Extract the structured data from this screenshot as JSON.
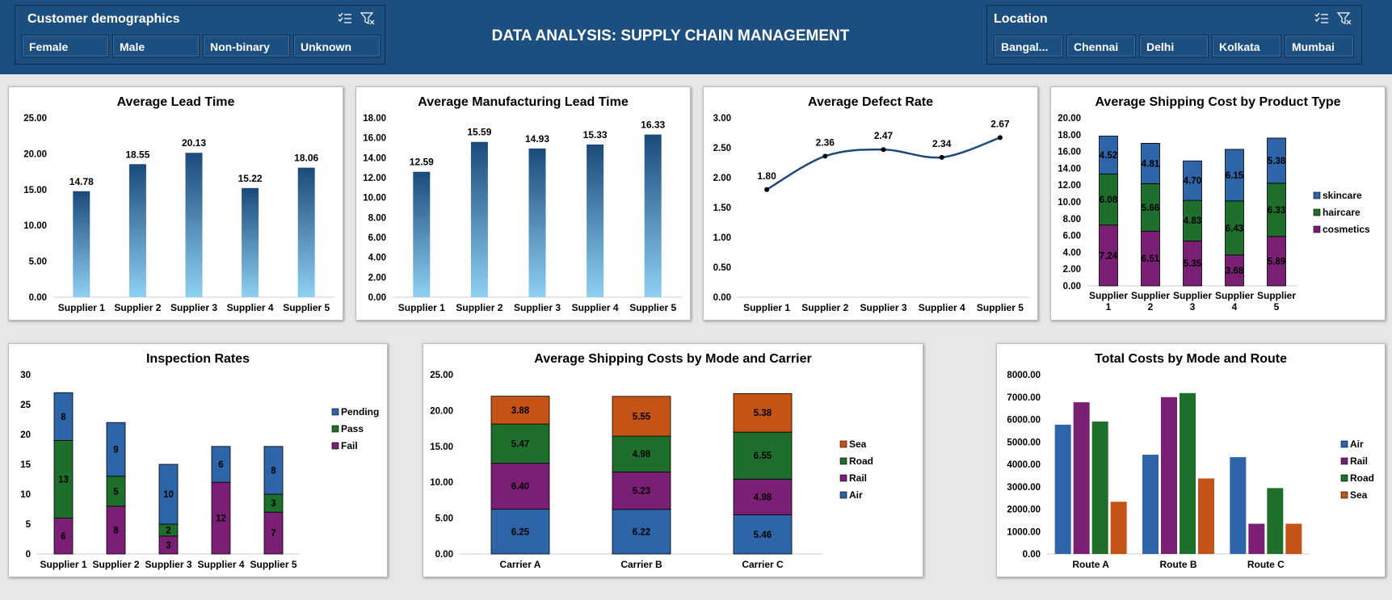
{
  "header": {
    "title": "DATA ANALYSIS: SUPPLY CHAIN MANAGEMENT",
    "demographics_slicer": {
      "title": "Customer demographics",
      "items": [
        "Female",
        "Male",
        "Non-binary",
        "Unknown"
      ]
    },
    "location_slicer": {
      "title": "Location",
      "items": [
        "Bangal...",
        "Chennai",
        "Delhi",
        "Kolkata",
        "Mumbai"
      ]
    }
  },
  "colors": {
    "header_bg": "#1c4e80",
    "blue": "#2e64a8",
    "green": "#1e6e2c",
    "purple": "#7a1f74",
    "orange": "#c55316",
    "navy": "#1b4a7a"
  },
  "chart_data": [
    {
      "id": "lead_time",
      "type": "bar",
      "title": "Average Lead Time",
      "categories": [
        "Supplier 1",
        "Supplier 2",
        "Supplier 3",
        "Supplier 4",
        "Supplier 5"
      ],
      "values": [
        14.78,
        18.55,
        20.13,
        15.22,
        18.06
      ],
      "value_labels": [
        "14.78",
        "18.55",
        "20.13",
        "15.22",
        "18.06"
      ],
      "ylim": [
        0,
        25
      ],
      "yticks": [
        "0.00",
        "5.00",
        "10.00",
        "15.00",
        "20.00",
        "25.00"
      ]
    },
    {
      "id": "mfg_lead_time",
      "type": "bar",
      "title": "Average Manufacturing Lead Time",
      "categories": [
        "Supplier 1",
        "Supplier 2",
        "Supplier 3",
        "Supplier 4",
        "Supplier 5"
      ],
      "values": [
        12.59,
        15.59,
        14.93,
        15.33,
        16.33
      ],
      "value_labels": [
        "12.59",
        "15.59",
        "14.93",
        "15.33",
        "16.33"
      ],
      "ylim": [
        0,
        18
      ],
      "yticks": [
        "0.00",
        "2.00",
        "4.00",
        "6.00",
        "8.00",
        "10.00",
        "12.00",
        "14.00",
        "16.00",
        "18.00"
      ]
    },
    {
      "id": "defect_rate",
      "type": "line",
      "title": "Average Defect Rate",
      "categories": [
        "Supplier 1",
        "Supplier 2",
        "Supplier 3",
        "Supplier 4",
        "Supplier 5"
      ],
      "values": [
        1.8,
        2.36,
        2.47,
        2.34,
        2.67
      ],
      "value_labels": [
        "1.80",
        "2.36",
        "2.47",
        "2.34",
        "2.67"
      ],
      "ylim": [
        0,
        3
      ],
      "yticks": [
        "0.00",
        "0.50",
        "1.00",
        "1.50",
        "2.00",
        "2.50",
        "3.00"
      ]
    },
    {
      "id": "shipping_by_product",
      "type": "bar",
      "stacked": true,
      "title": "Average Shipping Cost by Product Type",
      "categories": [
        "Supplier 1",
        "Supplier 2",
        "Supplier 3",
        "Supplier 4",
        "Supplier 5"
      ],
      "series": [
        {
          "name": "cosmetics",
          "color": "#7a1f74",
          "values": [
            7.24,
            6.51,
            5.35,
            3.68,
            5.89
          ],
          "labels": [
            "7.24",
            "6.51",
            "5.35",
            "3.68",
            "5.89"
          ]
        },
        {
          "name": "haircare",
          "color": "#1e6e2c",
          "values": [
            6.08,
            5.66,
            4.83,
            6.43,
            6.33
          ],
          "labels": [
            "6.08",
            "5.66",
            "4.83",
            "6.43",
            "6.33"
          ]
        },
        {
          "name": "skincare",
          "color": "#2e64a8",
          "values": [
            4.52,
            4.81,
            4.7,
            6.15,
            5.38
          ],
          "labels": [
            "4.52",
            "4.81",
            "4.70",
            "6.15",
            "5.38"
          ]
        }
      ],
      "legend_order": [
        "skincare",
        "haircare",
        "cosmetics"
      ],
      "ylim": [
        0,
        20
      ],
      "yticks": [
        "0.00",
        "2.00",
        "4.00",
        "6.00",
        "8.00",
        "10.00",
        "12.00",
        "14.00",
        "16.00",
        "18.00",
        "20.00"
      ]
    },
    {
      "id": "inspection",
      "type": "bar",
      "stacked": true,
      "title": "Inspection Rates",
      "categories": [
        "Supplier 1",
        "Supplier 2",
        "Supplier 3",
        "Supplier 4",
        "Supplier 5"
      ],
      "series": [
        {
          "name": "Fail",
          "color": "#7a1f74",
          "values": [
            6,
            8,
            3,
            12,
            7
          ],
          "labels": [
            "6",
            "8",
            "3",
            "12",
            "7"
          ]
        },
        {
          "name": "Pass",
          "color": "#1e6e2c",
          "values": [
            13,
            5,
            2,
            0,
            3
          ],
          "labels": [
            "13",
            "5",
            "2",
            "",
            "3"
          ]
        },
        {
          "name": "Pending",
          "color": "#2e64a8",
          "values": [
            8,
            9,
            10,
            6,
            8
          ],
          "labels": [
            "8",
            "9",
            "10",
            "6",
            "8"
          ]
        }
      ],
      "legend_order": [
        "Pending",
        "Pass",
        "Fail"
      ],
      "ylim": [
        0,
        30
      ],
      "yticks": [
        "0",
        "5",
        "10",
        "15",
        "20",
        "25",
        "30"
      ]
    },
    {
      "id": "mode_carrier",
      "type": "bar",
      "stacked": true,
      "title": "Average Shipping Costs by Mode and Carrier",
      "categories": [
        "Carrier A",
        "Carrier B",
        "Carrier C"
      ],
      "series": [
        {
          "name": "Air",
          "color": "#2e64a8",
          "values": [
            6.25,
            6.22,
            5.46
          ],
          "labels": [
            "6.25",
            "6.22",
            "5.46"
          ]
        },
        {
          "name": "Rail",
          "color": "#7a1f74",
          "values": [
            6.4,
            5.23,
            4.98
          ],
          "labels": [
            "6.40",
            "5.23",
            "4.98"
          ]
        },
        {
          "name": "Road",
          "color": "#1e6e2c",
          "values": [
            5.47,
            4.98,
            6.55
          ],
          "labels": [
            "5.47",
            "4.98",
            "6.55"
          ]
        },
        {
          "name": "Sea",
          "color": "#c55316",
          "values": [
            3.88,
            5.55,
            5.38
          ],
          "labels": [
            "3.88",
            "5.55",
            "5.38"
          ]
        }
      ],
      "legend_order": [
        "Sea",
        "Road",
        "Rail",
        "Air"
      ],
      "ylim": [
        0,
        25
      ],
      "yticks": [
        "0.00",
        "5.00",
        "10.00",
        "15.00",
        "20.00",
        "25.00"
      ]
    },
    {
      "id": "mode_route",
      "type": "bar",
      "grouped": true,
      "title": "Total Costs by Mode and Route",
      "categories": [
        "Route A",
        "Route B",
        "Route C"
      ],
      "series": [
        {
          "name": "Air",
          "color": "#2e64a8",
          "values": [
            5770,
            4430,
            4320
          ]
        },
        {
          "name": "Rail",
          "color": "#7a1f74",
          "values": [
            6770,
            7000,
            1350
          ]
        },
        {
          "name": "Road",
          "color": "#1e6e2c",
          "values": [
            5910,
            7180,
            2940
          ]
        },
        {
          "name": "Sea",
          "color": "#c55316",
          "values": [
            2330,
            3370,
            1350
          ]
        }
      ],
      "legend_order": [
        "Air",
        "Rail",
        "Road",
        "Sea"
      ],
      "ylim": [
        0,
        8000
      ],
      "yticks": [
        "0.00",
        "1000.00",
        "2000.00",
        "3000.00",
        "4000.00",
        "5000.00",
        "6000.00",
        "7000.00",
        "8000.00"
      ]
    }
  ]
}
